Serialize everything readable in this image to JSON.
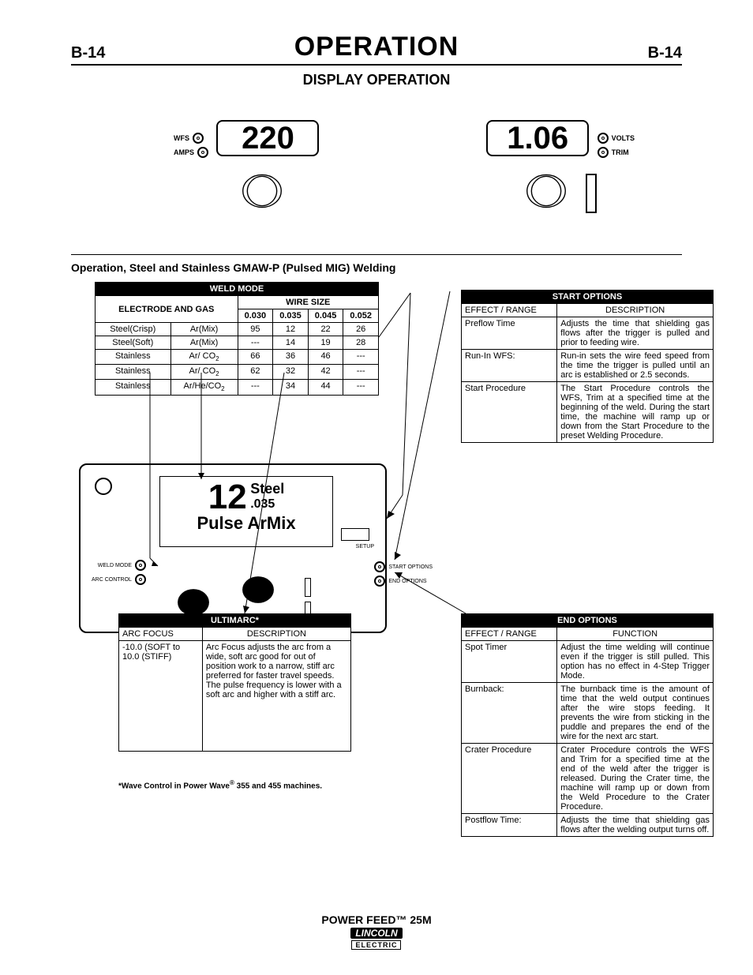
{
  "page": {
    "num": "B-14",
    "title": "OPERATION",
    "subtitle": "DISPLAY OPERATION"
  },
  "disp": {
    "left": {
      "value": "220",
      "lab1": "WFS",
      "lab2": "AMPS"
    },
    "right": {
      "value": "1.06",
      "lab1": "VOLTS",
      "lab2": "TRIM"
    }
  },
  "section": "Operation, Steel and Stainless GMAW-P (Pulsed MIG) Welding",
  "weldmode": {
    "hdr1": "WELD MODE",
    "hdr2": "ELECTRODE AND GAS",
    "hdr3": "WIRE SIZE",
    "sizes": [
      "0.030",
      "0.035",
      "0.045",
      "0.052"
    ],
    "rows": [
      {
        "e": "Steel(Crisp)",
        "g": "Ar(Mix)",
        "v": [
          "95",
          "12",
          "22",
          "26"
        ]
      },
      {
        "e": "Steel(Soft)",
        "g": "Ar(Mix)",
        "v": [
          "---",
          "14",
          "19",
          "28"
        ]
      },
      {
        "e": "Stainless",
        "g": "Ar/ CO",
        "sub": "2",
        "v": [
          "66",
          "36",
          "46",
          "---"
        ]
      },
      {
        "e": "Stainless",
        "g": "Ar/ CO",
        "sub": "2",
        "v": [
          "62",
          "32",
          "42",
          "---"
        ]
      },
      {
        "e": "Stainless",
        "g": "Ar/He/CO",
        "sub": "2",
        "v": [
          "---",
          "34",
          "44",
          "---"
        ]
      }
    ]
  },
  "panel": {
    "num": "12",
    "s1": "Steel",
    "s2": ".035",
    "bottom": "Pulse ArMix",
    "wm": "WELD MODE",
    "ac": "ARC CONTROL",
    "set": "SET",
    "setup": "SETUP",
    "so": "START OPTIONS",
    "eo": "END OPTIONS"
  },
  "start": {
    "title": "START OPTIONS",
    "h1": "EFFECT / RANGE",
    "h2": "DESCRIPTION",
    "rows": [
      {
        "e": "Preflow Time",
        "d": "Adjusts the time that shielding gas flows after the trigger is pulled and prior to feeding wire."
      },
      {
        "e": "Run-In WFS:",
        "d": "Run-in sets the wire feed speed from the time the trigger is pulled until an arc is established or 2.5 seconds."
      },
      {
        "e": "Start Procedure",
        "d": "The Start Procedure controls the WFS, Trim at a specified time at the beginning of the weld. During the start time, the machine will ramp up or down from the Start Procedure to the preset Welding Procedure."
      }
    ]
  },
  "end": {
    "title": "END OPTIONS",
    "h1": "EFFECT / RANGE",
    "h2": "FUNCTION",
    "rows": [
      {
        "e": "Spot Timer",
        "d": "Adjust the time welding will continue even if the trigger is still pulled. This option has no effect in 4-Step Trigger Mode."
      },
      {
        "e": "Burnback:",
        "d": "The burnback time is the amount of time that the weld output continues after the wire stops feeding. It prevents the wire from sticking in the puddle and prepares the end of the wire for the next arc start."
      },
      {
        "e": "Crater Procedure",
        "d": "Crater Procedure controls the WFS and Trim for a specified time at the end of the weld after the trigger is released. During the Crater time, the machine will ramp up or down from the Weld Procedure to the Crater Procedure."
      },
      {
        "e": "Postflow Time:",
        "d": "Adjusts the time that shielding gas flows after the welding output turns off."
      }
    ]
  },
  "ultimarc": {
    "title": "ULTIMARC*",
    "row0": {
      "c1": "ARC FOCUS",
      "c2": "DESCRIPTION"
    },
    "row1": {
      "c1": "-10.0 (SOFT to 10.0 (STIFF)",
      "c2": "Arc Focus adjusts the arc from a wide, soft arc good for out of position work to a narrow, stiff arc preferred for faster travel speeds. The pulse frequency is lower with a soft arc and higher with a stiff arc."
    }
  },
  "footnote": {
    "pre": "*Wave Control in Power Wave",
    "post": " 355 and 455 machines."
  },
  "footer": {
    "product": "POWER FEED™ 25M",
    "brand1": "LINCOLN",
    "brand2": "ELECTRIC"
  }
}
